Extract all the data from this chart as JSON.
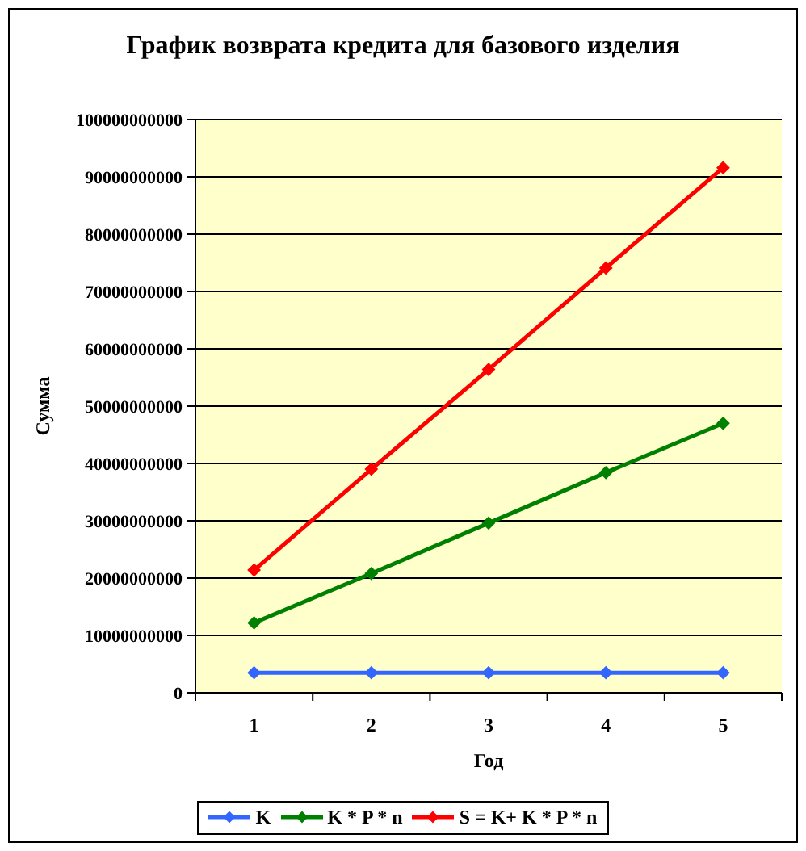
{
  "chart_data": {
    "type": "line",
    "title": "График возврата кредита для базового изделия",
    "xlabel": "Год",
    "ylabel": "Сумма",
    "categories": [
      "1",
      "2",
      "3",
      "4",
      "5"
    ],
    "series": [
      {
        "name": "K",
        "color": "#3366ff",
        "values": [
          3500000000,
          3500000000,
          3500000000,
          3500000000,
          3500000000
        ]
      },
      {
        "name": "K * P * n",
        "color": "#008000",
        "values": [
          12200000000,
          20800000000,
          29600000000,
          38400000000,
          47000000000
        ]
      },
      {
        "name": "S = K+ K * P * n",
        "color": "#ff0000",
        "values": [
          21400000000,
          39000000000,
          56400000000,
          74100000000,
          91600000000
        ]
      }
    ],
    "ylim": [
      0,
      100000000000
    ],
    "yticks": [
      0,
      10000000000,
      20000000000,
      30000000000,
      40000000000,
      50000000000,
      60000000000,
      70000000000,
      80000000000,
      90000000000,
      100000000000
    ],
    "grid": "y",
    "legend": "bottom",
    "marker": "diamond",
    "line_style": "solid"
  }
}
